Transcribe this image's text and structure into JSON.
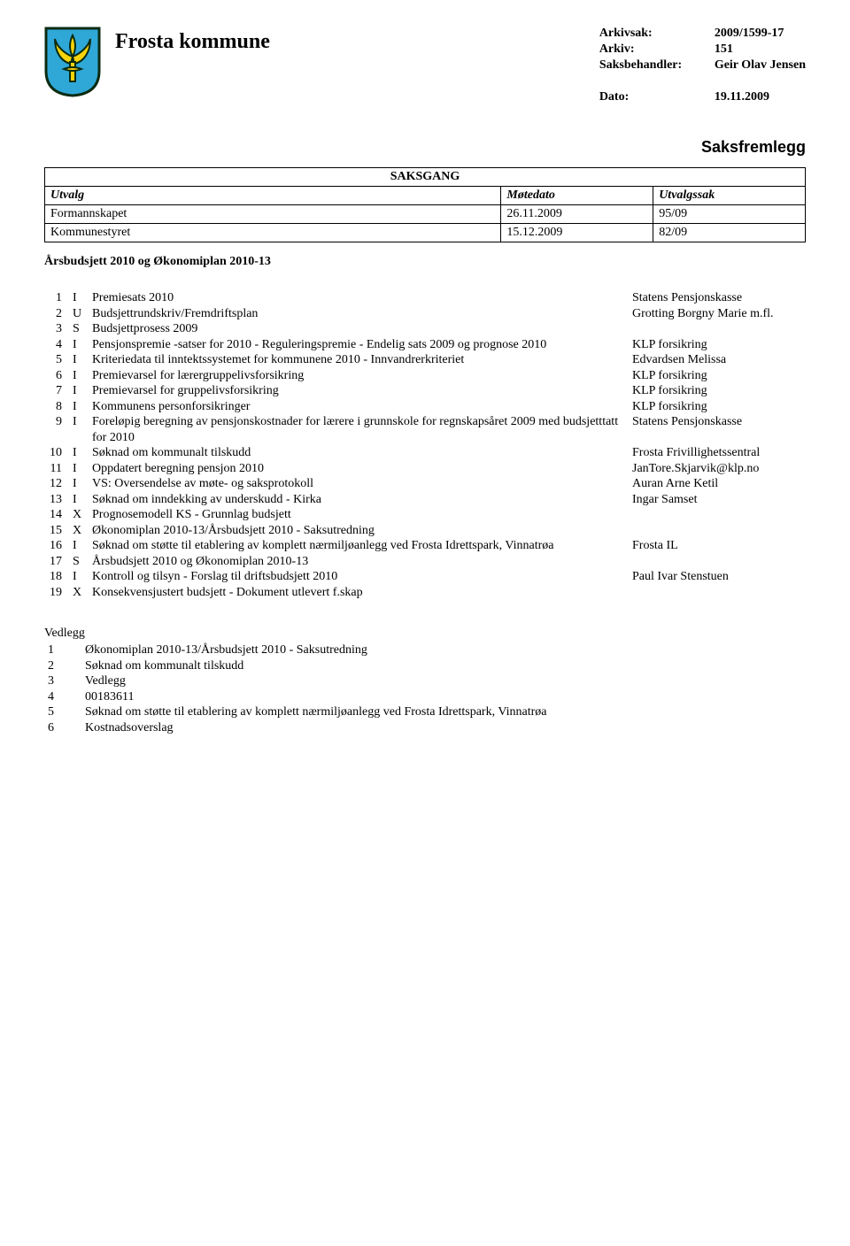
{
  "header": {
    "org": "Frosta kommune",
    "meta": {
      "arkivsak_label": "Arkivsak:",
      "arkivsak_value": "2009/1599-17",
      "arkiv_label": "Arkiv:",
      "arkiv_value": "151",
      "saksbehandler_label": "Saksbehandler:",
      "saksbehandler_value": "Geir Olav Jensen",
      "dato_label": "Dato:",
      "dato_value": "19.11.2009"
    },
    "crest_colors": {
      "shield_fill": "#2fa8d8",
      "shield_stroke": "#0b2b12",
      "lily_fill": "#f7d40a",
      "lily_stroke": "#0b2b12"
    }
  },
  "saksfremlegg_label": "Saksfremlegg",
  "saksgang": {
    "title": "SAKSGANG",
    "columns": [
      "Utvalg",
      "Møtedato",
      "Utvalgssak"
    ],
    "rows": [
      [
        "Formannskapet",
        "26.11.2009",
        "95/09"
      ],
      [
        "Kommunestyret",
        "15.12.2009",
        "82/09"
      ]
    ],
    "col_widths": [
      "60%",
      "20%",
      "20%"
    ]
  },
  "section_title": "Årsbudsjett 2010 og Økonomiplan 2010-13",
  "items": [
    {
      "n": "1",
      "t": "I",
      "d": "Premiesats 2010",
      "o": "Statens Pensjonskasse"
    },
    {
      "n": "2",
      "t": "U",
      "d": "Budsjettrundskriv/Fremdriftsplan",
      "o": "Grotting Borgny Marie m.fl."
    },
    {
      "n": "3",
      "t": "S",
      "d": "Budsjettprosess 2009",
      "o": ""
    },
    {
      "n": "4",
      "t": "I",
      "d": "Pensjonspremie -satser for 2010 - Reguleringspremie - Endelig sats 2009 og prognose 2010",
      "o": "KLP forsikring"
    },
    {
      "n": "5",
      "t": "I",
      "d": "Kriteriedata til inntektssystemet for kommunene 2010 - Innvandrerkriteriet",
      "o": "Edvardsen Melissa"
    },
    {
      "n": "6",
      "t": "I",
      "d": "Premievarsel for lærergruppelivsforsikring",
      "o": "KLP forsikring"
    },
    {
      "n": "7",
      "t": "I",
      "d": "Premievarsel for gruppelivsforsikring",
      "o": "KLP forsikring"
    },
    {
      "n": "8",
      "t": "I",
      "d": "Kommunens personforsikringer",
      "o": "KLP forsikring"
    },
    {
      "n": "9",
      "t": "I",
      "d": "Foreløpig beregning av pensjonskostnader for lærere i grunnskole for regnskapsåret 2009 med budsjetttatt for 2010",
      "o": "Statens Pensjonskasse"
    },
    {
      "n": "10",
      "t": "I",
      "d": "Søknad om kommunalt tilskudd",
      "o": "Frosta Frivillighetssentral"
    },
    {
      "n": "11",
      "t": "I",
      "d": "Oppdatert beregning pensjon 2010",
      "o": "JanTore.Skjarvik@klp.no"
    },
    {
      "n": "12",
      "t": "I",
      "d": "VS: Oversendelse av møte- og saksprotokoll",
      "o": "Auran Arne Ketil"
    },
    {
      "n": "13",
      "t": "I",
      "d": "Søknad om inndekking av underskudd - Kirka",
      "o": "Ingar Samset"
    },
    {
      "n": "14",
      "t": "X",
      "d": "Prognosemodell KS - Grunnlag budsjett",
      "o": ""
    },
    {
      "n": "15",
      "t": "X",
      "d": "Økonomiplan 2010-13/Årsbudsjett 2010 - Saksutredning",
      "o": ""
    },
    {
      "n": "16",
      "t": "I",
      "d": "Søknad om støtte til etablering av komplett nærmiljøanlegg ved Frosta Idrettspark, Vinnatrøa",
      "o": "Frosta IL"
    },
    {
      "n": "17",
      "t": "S",
      "d": "Årsbudsjett 2010 og Økonomiplan 2010-13",
      "o": ""
    },
    {
      "n": "18",
      "t": "I",
      "d": "Kontroll og tilsyn - Forslag til driftsbudsjett 2010",
      "o": "Paul Ivar Stenstuen"
    },
    {
      "n": "19",
      "t": "X",
      "d": "Konsekvensjustert budsjett - Dokument utlevert f.skap",
      "o": ""
    }
  ],
  "vedlegg": {
    "title": "Vedlegg",
    "rows": [
      {
        "n": "1",
        "d": "Økonomiplan 2010-13/Årsbudsjett 2010 - Saksutredning"
      },
      {
        "n": "2",
        "d": "Søknad om kommunalt tilskudd"
      },
      {
        "n": "3",
        "d": "Vedlegg"
      },
      {
        "n": "4",
        "d": "00183611"
      },
      {
        "n": "5",
        "d": "Søknad om støtte til etablering av komplett nærmiljøanlegg ved Frosta Idrettspark, Vinnatrøa"
      },
      {
        "n": "6",
        "d": "Kostnadsoverslag"
      }
    ]
  }
}
